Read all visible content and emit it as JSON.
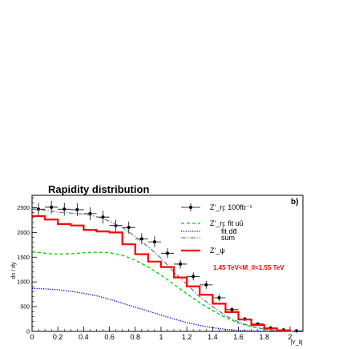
{
  "chart_data": {
    "type": "line",
    "title": "Rapidity distribution",
    "panel_label": "b)",
    "xlabel": "|Y_ll|",
    "ylabel": "dn / dy",
    "xlim": [
      0,
      2.1
    ],
    "ylim": [
      0,
      2750
    ],
    "x_ticks": [
      0,
      0.2,
      0.4,
      0.6,
      0.8,
      1,
      1.2,
      1.4,
      1.6,
      1.8,
      2
    ],
    "y_ticks": [
      0,
      500,
      1000,
      1500,
      2000,
      2500
    ],
    "annotation": "1.45 TeV<M_ll<1.55 TeV",
    "annotation_color": "#ff0000",
    "legend": {
      "position": "top-right",
      "entries": [
        {
          "label": "Z'_η: 100fb⁻¹",
          "style": "marker",
          "color": "#000000"
        },
        {
          "label": "Z'_η: fit uū",
          "style": "dashed",
          "color": "#00cc00"
        },
        {
          "label": "fit dd̄",
          "style": "dotted",
          "color": "#0000cc"
        },
        {
          "label": "sum",
          "style": "dashdot",
          "color": "#6d7fa0"
        },
        {
          "label": "Z'_ψ",
          "style": "solid-thick",
          "color": "#ff0000"
        }
      ]
    },
    "series": [
      {
        "name": "Z'_η: 100fb⁻¹",
        "style": "points",
        "color": "#000000",
        "x": [
          0.05,
          0.15,
          0.25,
          0.35,
          0.45,
          0.55,
          0.65,
          0.75,
          0.85,
          0.95,
          1.05,
          1.15,
          1.25,
          1.35,
          1.45,
          1.55,
          1.65,
          1.75,
          1.85,
          1.95,
          2.05
        ],
        "y": [
          2470,
          2510,
          2470,
          2460,
          2380,
          2310,
          2140,
          2100,
          1870,
          1810,
          1580,
          1360,
          1110,
          940,
          680,
          440,
          250,
          150,
          70,
          30,
          10
        ],
        "yerr": [
          130,
          130,
          130,
          130,
          130,
          130,
          120,
          120,
          110,
          110,
          100,
          90,
          80,
          80,
          70,
          50,
          40,
          30,
          20,
          15,
          10
        ]
      },
      {
        "name": "Z'_η: fit uū",
        "style": "dashed",
        "color": "#00cc00",
        "x": [
          0,
          0.1,
          0.2,
          0.3,
          0.4,
          0.5,
          0.6,
          0.7,
          0.8,
          0.9,
          1.0,
          1.1,
          1.2,
          1.3,
          1.4,
          1.5,
          1.6,
          1.7,
          1.8,
          1.9,
          2.0,
          2.05
        ],
        "y": [
          1610,
          1580,
          1560,
          1570,
          1590,
          1600,
          1590,
          1540,
          1440,
          1300,
          1140,
          950,
          760,
          580,
          420,
          280,
          170,
          95,
          45,
          15,
          3,
          0
        ]
      },
      {
        "name": "fit dd̄",
        "style": "dotted",
        "color": "#0000cc",
        "x": [
          0,
          0.1,
          0.2,
          0.3,
          0.4,
          0.5,
          0.6,
          0.7,
          0.8,
          0.9,
          1.0,
          1.1,
          1.2,
          1.3,
          1.4,
          1.5,
          1.6,
          1.7,
          1.8,
          1.9,
          2.0,
          2.05
        ],
        "y": [
          870,
          860,
          840,
          810,
          770,
          720,
          650,
          570,
          490,
          410,
          330,
          250,
          180,
          120,
          75,
          40,
          18,
          8,
          3,
          1,
          0,
          0
        ]
      },
      {
        "name": "sum",
        "style": "dashdot",
        "color": "#6d7fa0",
        "x": [
          0,
          0.1,
          0.2,
          0.3,
          0.4,
          0.5,
          0.6,
          0.7,
          0.8,
          0.9,
          1.0,
          1.1,
          1.2,
          1.3,
          1.4,
          1.5,
          1.6,
          1.7,
          1.8,
          1.9,
          2.0,
          2.05
        ],
        "y": [
          2480,
          2450,
          2410,
          2390,
          2370,
          2320,
          2230,
          2100,
          1920,
          1710,
          1480,
          1200,
          950,
          700,
          500,
          320,
          190,
          100,
          45,
          15,
          3,
          0
        ]
      },
      {
        "name": "Z'_ψ",
        "style": "histogram",
        "color": "#ff0000",
        "bin_edges": [
          0,
          0.1,
          0.2,
          0.3,
          0.4,
          0.5,
          0.6,
          0.7,
          0.8,
          0.9,
          1.0,
          1.1,
          1.2,
          1.3,
          1.4,
          1.5,
          1.6,
          1.7,
          1.8,
          1.9,
          2.0
        ],
        "values": [
          2330,
          2260,
          2170,
          2140,
          2050,
          2020,
          2000,
          1760,
          1560,
          1410,
          1300,
          1090,
          910,
          740,
          560,
          390,
          240,
          130,
          60,
          20
        ]
      }
    ]
  }
}
